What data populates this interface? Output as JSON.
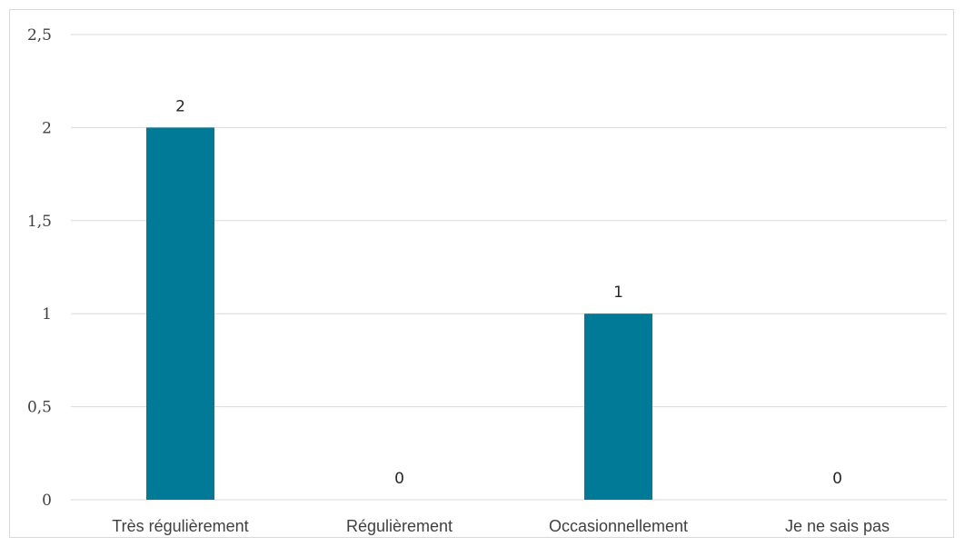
{
  "chart_data": {
    "type": "bar",
    "categories": [
      "Très régulièrement",
      "Régulièrement",
      "Occasionnellement",
      "Je ne sais pas"
    ],
    "values": [
      2,
      0,
      1,
      0
    ],
    "data_labels": [
      "2",
      "0",
      "1",
      "0"
    ],
    "ylim": [
      0,
      2.5
    ],
    "yticks": [
      0,
      0.5,
      1,
      1.5,
      2,
      2.5
    ],
    "ytick_labels": [
      "0",
      "0,5",
      "1",
      "1,5",
      "2",
      "2,5"
    ],
    "bar_color": "#007A96",
    "grid": true,
    "legend": "none"
  }
}
